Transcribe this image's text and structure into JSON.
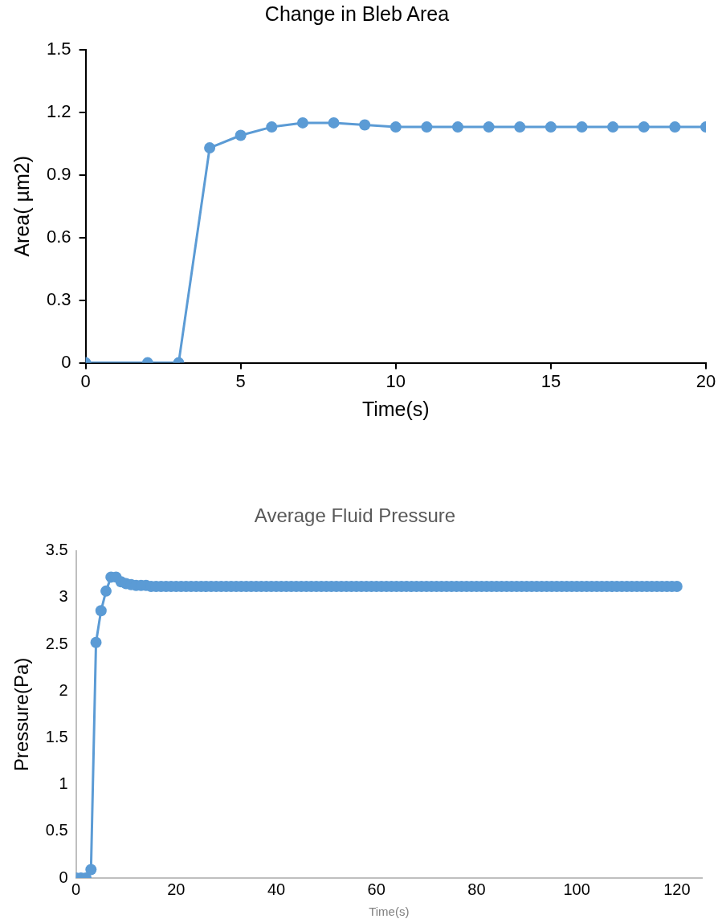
{
  "chart_data": [
    {
      "type": "line",
      "title": "Change in Bleb Area",
      "xlabel": "Time(s)",
      "ylabel": "Area( µm2)",
      "x": [
        0,
        2,
        3,
        4,
        5,
        6,
        7,
        8,
        9,
        10,
        11,
        12,
        13,
        14,
        15,
        16,
        17,
        18,
        19,
        20
      ],
      "series": [
        {
          "color": "#5b9bd5",
          "values": [
            0,
            0,
            0,
            1.03,
            1.09,
            1.13,
            1.15,
            1.15,
            1.14,
            1.13,
            1.13,
            1.13,
            1.13,
            1.13,
            1.13,
            1.13,
            1.13,
            1.13,
            1.13,
            1.13
          ]
        }
      ],
      "xlim": [
        0,
        20
      ],
      "xticks": [
        0,
        5,
        10,
        15,
        20
      ],
      "ylim": [
        0,
        1.5
      ],
      "yticks": [
        0,
        0.3,
        0.6,
        0.9,
        1.2,
        1.5
      ],
      "marker": "circle",
      "grid": false
    },
    {
      "type": "line",
      "title": "Average Fluid Pressure",
      "xlabel": "Time(s)",
      "ylabel": "Pressure(Pa)",
      "x": [
        0,
        1,
        2,
        3,
        4,
        5,
        6,
        7,
        8,
        9,
        10,
        11,
        12,
        13,
        14,
        15,
        16,
        17,
        18,
        19,
        20,
        21,
        22,
        23,
        24,
        25,
        26,
        27,
        28,
        29,
        30,
        31,
        32,
        33,
        34,
        35,
        36,
        37,
        38,
        39,
        40,
        41,
        42,
        43,
        44,
        45,
        46,
        47,
        48,
        49,
        50,
        51,
        52,
        53,
        54,
        55,
        56,
        57,
        58,
        59,
        60,
        61,
        62,
        63,
        64,
        65,
        66,
        67,
        68,
        69,
        70,
        71,
        72,
        73,
        74,
        75,
        76,
        77,
        78,
        79,
        80,
        81,
        82,
        83,
        84,
        85,
        86,
        87,
        88,
        89,
        90,
        91,
        92,
        93,
        94,
        95,
        96,
        97,
        98,
        99,
        100,
        101,
        102,
        103,
        104,
        105,
        106,
        107,
        108,
        109,
        110,
        111,
        112,
        113,
        114,
        115,
        116,
        117,
        118,
        119,
        120
      ],
      "series": [
        {
          "color": "#5b9bd5",
          "values": [
            0,
            0,
            0,
            0.09,
            2.52,
            2.86,
            3.07,
            3.22,
            3.22,
            3.17,
            3.15,
            3.14,
            3.13,
            3.13,
            3.13,
            3.12,
            3.12,
            3.12,
            3.12,
            3.12,
            3.12,
            3.12,
            3.12,
            3.12,
            3.12,
            3.12,
            3.12,
            3.12,
            3.12,
            3.12,
            3.12,
            3.12,
            3.12,
            3.12,
            3.12,
            3.12,
            3.12,
            3.12,
            3.12,
            3.12,
            3.12,
            3.12,
            3.12,
            3.12,
            3.12,
            3.12,
            3.12,
            3.12,
            3.12,
            3.12,
            3.12,
            3.12,
            3.12,
            3.12,
            3.12,
            3.12,
            3.12,
            3.12,
            3.12,
            3.12,
            3.12,
            3.12,
            3.12,
            3.12,
            3.12,
            3.12,
            3.12,
            3.12,
            3.12,
            3.12,
            3.12,
            3.12,
            3.12,
            3.12,
            3.12,
            3.12,
            3.12,
            3.12,
            3.12,
            3.12,
            3.12,
            3.12,
            3.12,
            3.12,
            3.12,
            3.12,
            3.12,
            3.12,
            3.12,
            3.12,
            3.12,
            3.12,
            3.12,
            3.12,
            3.12,
            3.12,
            3.12,
            3.12,
            3.12,
            3.12,
            3.12,
            3.12,
            3.12,
            3.12,
            3.12,
            3.12,
            3.12,
            3.12,
            3.12,
            3.12,
            3.12,
            3.12,
            3.12,
            3.12,
            3.12,
            3.12,
            3.12,
            3.12,
            3.12,
            3.12,
            3.12
          ]
        }
      ],
      "xlim": [
        0,
        125
      ],
      "xticks": [
        0,
        20,
        40,
        60,
        80,
        100,
        120
      ],
      "ylim": [
        0,
        3.5
      ],
      "yticks": [
        0,
        0.5,
        1,
        1.5,
        2,
        2.5,
        3,
        3.5
      ],
      "marker": "circle",
      "grid": false
    }
  ]
}
